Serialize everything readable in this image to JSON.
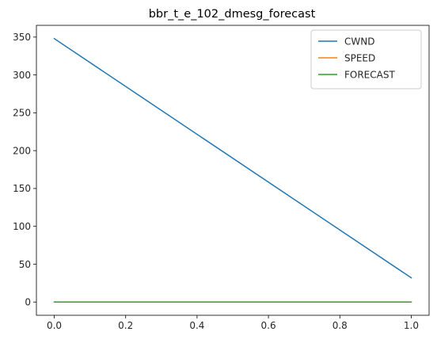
{
  "chart_data": {
    "type": "line",
    "title": "bbr_t_e_102_dmesg_forecast",
    "xlabel": "",
    "ylabel": "",
    "x": [
      0.0,
      1.0
    ],
    "xlim": [
      -0.05,
      1.05
    ],
    "ylim": [
      -17.5,
      365.5
    ],
    "xticks": [
      0.0,
      0.2,
      0.4,
      0.6,
      0.8,
      1.0
    ],
    "xtick_labels": [
      "0.0",
      "0.2",
      "0.4",
      "0.6",
      "0.8",
      "1.0"
    ],
    "yticks": [
      0,
      50,
      100,
      150,
      200,
      250,
      300,
      350
    ],
    "ytick_labels": [
      "0",
      "50",
      "100",
      "150",
      "200",
      "250",
      "300",
      "350"
    ],
    "grid": false,
    "legend_position": "top-right",
    "series": [
      {
        "name": "CWND",
        "color": "#1f77b4",
        "values": [
          348,
          32
        ]
      },
      {
        "name": "SPEED",
        "color": "#ff7f0e",
        "values": [
          0,
          0
        ]
      },
      {
        "name": "FORECAST",
        "color": "#2ca02c",
        "values": [
          0,
          0
        ]
      }
    ]
  }
}
